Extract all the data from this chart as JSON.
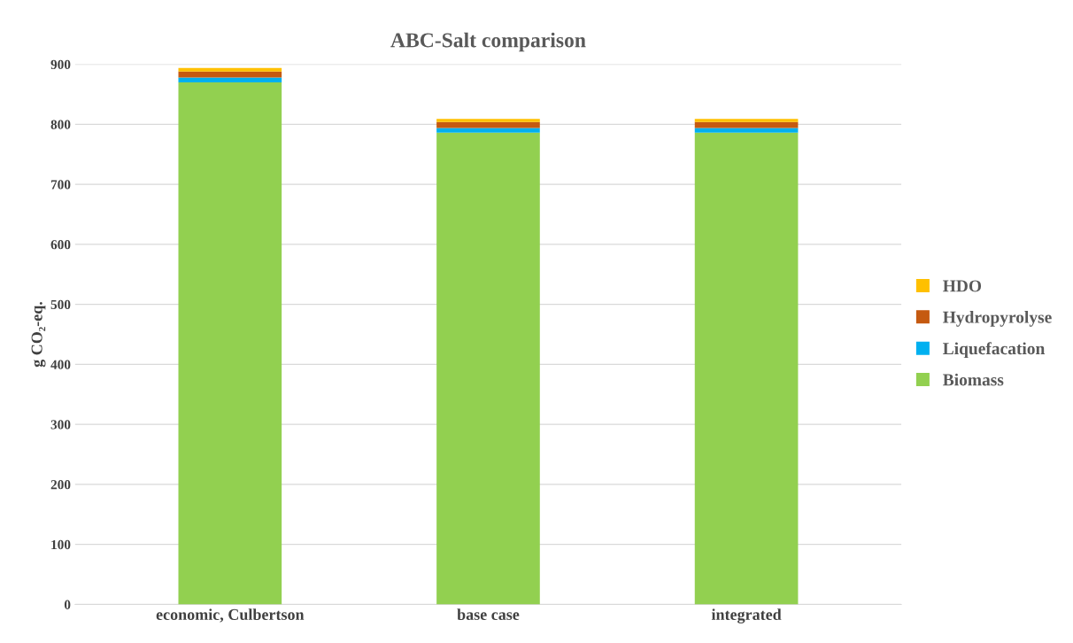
{
  "chart_data": {
    "type": "bar",
    "title": "ABC-Salt comparison",
    "ylabel": "g CO₂-eq.",
    "stacked": true,
    "categories": [
      "economic, Culbertson",
      "base case",
      "integrated"
    ],
    "series": [
      {
        "name": "Biomass",
        "color": "#92d050",
        "values": [
          870,
          786,
          786
        ]
      },
      {
        "name": "Liquefacation",
        "color": "#00b0f0",
        "values": [
          8,
          8,
          8
        ]
      },
      {
        "name": "Hydropyrolyse",
        "color": "#c55a11",
        "values": [
          10,
          10,
          10
        ]
      },
      {
        "name": "HDO",
        "color": "#ffc000",
        "values": [
          6,
          5,
          5
        ]
      }
    ],
    "ylim": [
      0,
      900
    ],
    "yticks": [
      0,
      100,
      200,
      300,
      400,
      500,
      600,
      700,
      800,
      900
    ],
    "grid": "y",
    "legend": "right"
  }
}
